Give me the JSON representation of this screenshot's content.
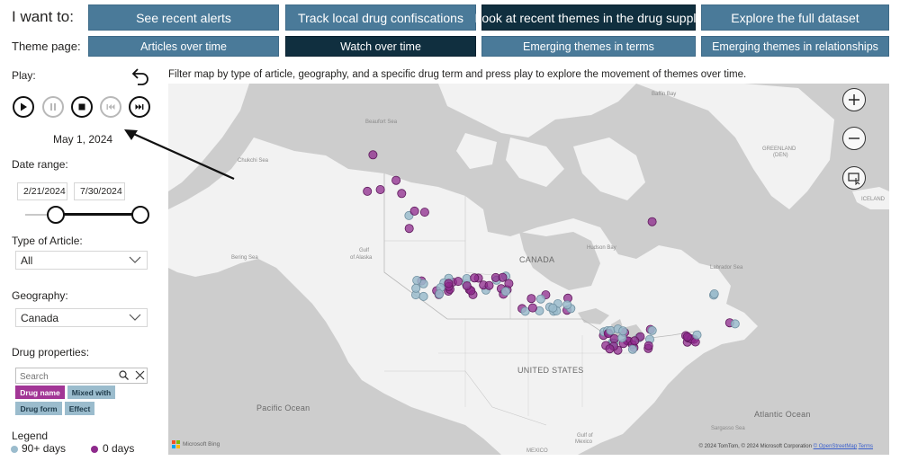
{
  "header": {
    "i_want_to": "I want to:",
    "theme_page": "Theme page:"
  },
  "nav_row1": [
    {
      "label": "See recent alerts",
      "active": false
    },
    {
      "label": "Track local drug confiscations",
      "active": false
    },
    {
      "label": "Look at recent themes in the drug supply",
      "active": true
    },
    {
      "label": "Explore the full dataset",
      "active": false
    }
  ],
  "nav_row2": [
    {
      "label": "Articles over time",
      "active": false
    },
    {
      "label": "Watch over time",
      "active": true
    },
    {
      "label": "Emerging themes in terms",
      "active": false
    },
    {
      "label": "Emerging themes in relationships",
      "active": false
    }
  ],
  "play": {
    "label": "Play:",
    "current_date": "May 1, 2024",
    "controls": [
      "play-icon",
      "pause-icon",
      "stop-icon",
      "skip-back-icon",
      "skip-forward-icon"
    ]
  },
  "date_range": {
    "label": "Date range:",
    "start": "2/21/2024",
    "end": "7/30/2024",
    "slider_start_fraction": 0.0,
    "slider_end_fraction": 1.0
  },
  "article_type": {
    "label": "Type of Article:",
    "value": "All"
  },
  "geography": {
    "label": "Geography:",
    "value": "Canada"
  },
  "drug_properties": {
    "label": "Drug properties:",
    "search_placeholder": "Search",
    "chips": [
      {
        "label": "Drug name",
        "selected": true
      },
      {
        "label": "Mixed with",
        "selected": false
      },
      {
        "label": "Drug form",
        "selected": false
      },
      {
        "label": "Effect",
        "selected": false
      }
    ]
  },
  "legend": {
    "title": "Legend",
    "old_label": "90+ days",
    "new_label": "0 days",
    "old_color": "#9bbccd",
    "new_color": "#8e2a8c"
  },
  "instructions": "Filter map by type of article, geography, and a specific drug term and press play to explore the movement of themes over time.",
  "map": {
    "labels": {
      "baffin_bay": "Baffin Bay",
      "beaufort_sea": "Beaufort Sea",
      "chukchi_sea": "Chukchi Sea",
      "greenland": "GREENLAND",
      "greenland_sub": "(DEN)",
      "iceland": "ICELAND",
      "bering_sea": "Bering Sea",
      "gulf_alaska_1": "Gulf",
      "gulf_alaska_2": "of Alaska",
      "canada": "CANADA",
      "hudson_bay": "Hudson Bay",
      "labrador_sea": "Labrador Sea",
      "united_states": "UNITED STATES",
      "pacific_ocean": "Pacific Ocean",
      "atlantic_ocean": "Atlantic Ocean",
      "sargasso_sea": "Sargasso Sea",
      "gulf_mexico_1": "Gulf of",
      "gulf_mexico_2": "Mexico",
      "mexico": "MEXICO"
    },
    "bing_logo": "Microsoft Bing",
    "copyright": "© 2024 TomTom, © 2024 Microsoft Corporation",
    "osm_link": "© OpenStreetMap",
    "terms_link": "Terms",
    "controls": [
      "zoom-in-icon",
      "zoom-out-icon",
      "select-area-icon"
    ]
  }
}
